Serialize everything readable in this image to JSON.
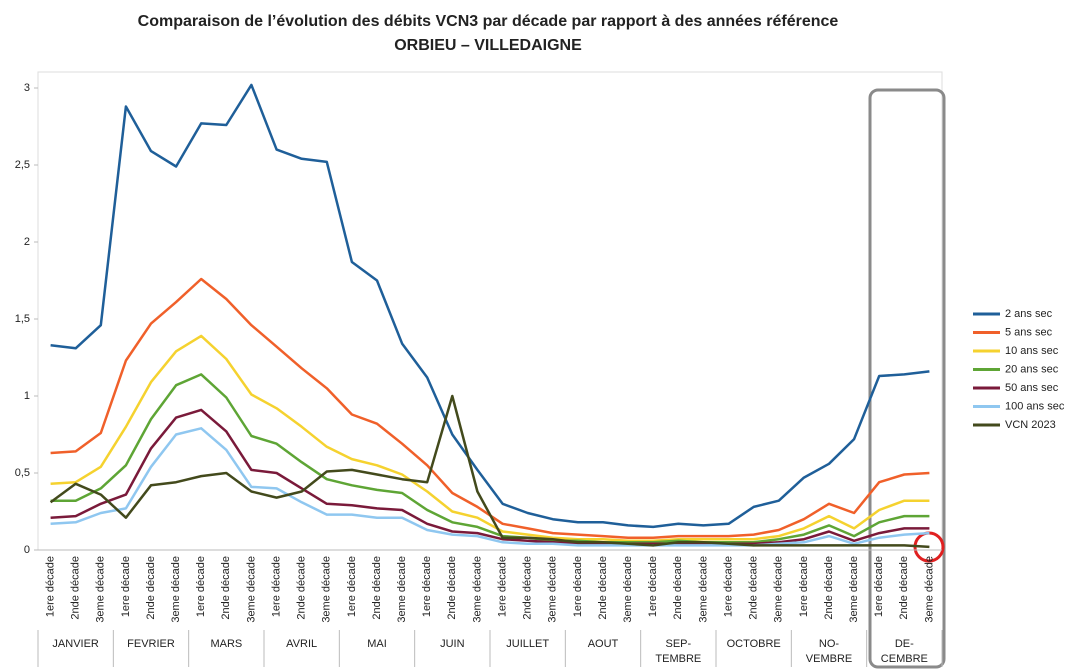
{
  "chart_data": {
    "type": "line",
    "title": "Comparaison de l’évolution des débits VCN3 par décade par rapport à des années référence",
    "subtitle": "ORBIEU – VILLEDAIGNE",
    "categories": [
      "1ere décade",
      "2nde décade",
      "3eme décade",
      "1ere décade",
      "2nde décade",
      "3eme décade",
      "1ere décade",
      "2nde décade",
      "3eme décade",
      "1ere décade",
      "2nde décade",
      "3eme décade",
      "1ere décade",
      "2nde décade",
      "3eme décade",
      "1ere décade",
      "2nde décade",
      "3eme décade",
      "1ere décade",
      "2nde décade",
      "3eme décade",
      "1ere décade",
      "2nde décade",
      "3eme décade",
      "1ere décade",
      "2nde décade",
      "3eme décade",
      "1ere décade",
      "2nde décade",
      "3eme décade",
      "1ere décade",
      "2nde décade",
      "3eme décade",
      "1ere décade",
      "2nde décade",
      "3eme décade"
    ],
    "groups": [
      [
        "JANVIER"
      ],
      [
        "FEVRIER"
      ],
      [
        "MARS"
      ],
      [
        "AVRIL"
      ],
      [
        "MAI"
      ],
      [
        "JUIN"
      ],
      [
        "JUILLET"
      ],
      [
        "AOUT"
      ],
      [
        "SEP-",
        "TEMBRE"
      ],
      [
        "OCTOBRE"
      ],
      [
        "NO-",
        "VEMBRE"
      ],
      [
        "DE-",
        "CEMBRE"
      ]
    ],
    "ylim": [
      0,
      3
    ],
    "yticks": [
      0,
      {
        "value": 0.5,
        "label": "0,5"
      },
      1,
      {
        "value": 1.5,
        "label": "1,5"
      },
      2,
      {
        "value": 2.5,
        "label": "2,5"
      },
      3
    ],
    "series": [
      {
        "name": "2 ans sec",
        "color": "#1f5f99",
        "values": [
          1.33,
          1.31,
          1.46,
          2.88,
          2.59,
          2.49,
          2.77,
          2.76,
          3.02,
          2.6,
          2.54,
          2.52,
          1.87,
          1.75,
          1.34,
          1.12,
          0.75,
          0.52,
          0.3,
          0.24,
          0.2,
          0.18,
          0.18,
          0.16,
          0.15,
          0.17,
          0.16,
          0.17,
          0.28,
          0.32,
          0.47,
          0.56,
          0.72,
          1.13,
          1.14,
          1.16
        ]
      },
      {
        "name": "5 ans sec",
        "color": "#f0602a",
        "values": [
          0.63,
          0.64,
          0.76,
          1.23,
          1.47,
          1.61,
          1.76,
          1.63,
          1.46,
          1.32,
          1.18,
          1.05,
          0.88,
          0.82,
          0.69,
          0.55,
          0.37,
          0.28,
          0.17,
          0.14,
          0.11,
          0.1,
          0.09,
          0.08,
          0.08,
          0.09,
          0.09,
          0.09,
          0.1,
          0.13,
          0.2,
          0.3,
          0.24,
          0.44,
          0.49,
          0.5
        ]
      },
      {
        "name": "10 ans sec",
        "color": "#f5d22f",
        "values": [
          0.43,
          0.44,
          0.54,
          0.8,
          1.09,
          1.29,
          1.39,
          1.24,
          1.01,
          0.92,
          0.8,
          0.67,
          0.59,
          0.55,
          0.49,
          0.38,
          0.25,
          0.21,
          0.12,
          0.1,
          0.08,
          0.07,
          0.07,
          0.06,
          0.06,
          0.07,
          0.07,
          0.07,
          0.07,
          0.09,
          0.14,
          0.22,
          0.14,
          0.26,
          0.32,
          0.32
        ]
      },
      {
        "name": "20 ans sec",
        "color": "#5ea535",
        "values": [
          0.32,
          0.32,
          0.4,
          0.55,
          0.85,
          1.07,
          1.14,
          0.99,
          0.74,
          0.69,
          0.57,
          0.46,
          0.42,
          0.39,
          0.37,
          0.26,
          0.18,
          0.15,
          0.09,
          0.08,
          0.06,
          0.06,
          0.05,
          0.05,
          0.05,
          0.06,
          0.05,
          0.05,
          0.05,
          0.07,
          0.1,
          0.16,
          0.09,
          0.18,
          0.22,
          0.22
        ]
      },
      {
        "name": "50 ans sec",
        "color": "#7a1a3a",
        "values": [
          0.21,
          0.22,
          0.3,
          0.36,
          0.66,
          0.86,
          0.91,
          0.77,
          0.52,
          0.5,
          0.4,
          0.3,
          0.29,
          0.27,
          0.26,
          0.17,
          0.12,
          0.11,
          0.07,
          0.06,
          0.05,
          0.04,
          0.04,
          0.04,
          0.04,
          0.04,
          0.04,
          0.04,
          0.04,
          0.05,
          0.07,
          0.12,
          0.06,
          0.11,
          0.14,
          0.14
        ]
      },
      {
        "name": "100 ans sec",
        "color": "#8fc7f0",
        "values": [
          0.17,
          0.18,
          0.24,
          0.27,
          0.54,
          0.75,
          0.79,
          0.65,
          0.41,
          0.4,
          0.31,
          0.23,
          0.23,
          0.21,
          0.21,
          0.13,
          0.1,
          0.09,
          0.05,
          0.04,
          0.04,
          0.03,
          0.03,
          0.03,
          0.03,
          0.03,
          0.03,
          0.03,
          0.03,
          0.04,
          0.05,
          0.09,
          0.04,
          0.08,
          0.1,
          0.11
        ]
      },
      {
        "name": "VCN 2023",
        "color": "#434a1c",
        "values": [
          0.31,
          0.43,
          0.36,
          0.21,
          0.42,
          0.44,
          0.48,
          0.5,
          0.38,
          0.34,
          0.38,
          0.51,
          0.52,
          0.49,
          0.46,
          0.44,
          1.0,
          0.38,
          0.08,
          0.08,
          0.07,
          0.05,
          0.05,
          0.04,
          0.03,
          0.05,
          0.05,
          0.04,
          0.03,
          0.03,
          0.03,
          0.03,
          0.03,
          0.03,
          0.03,
          0.02
        ]
      }
    ]
  }
}
